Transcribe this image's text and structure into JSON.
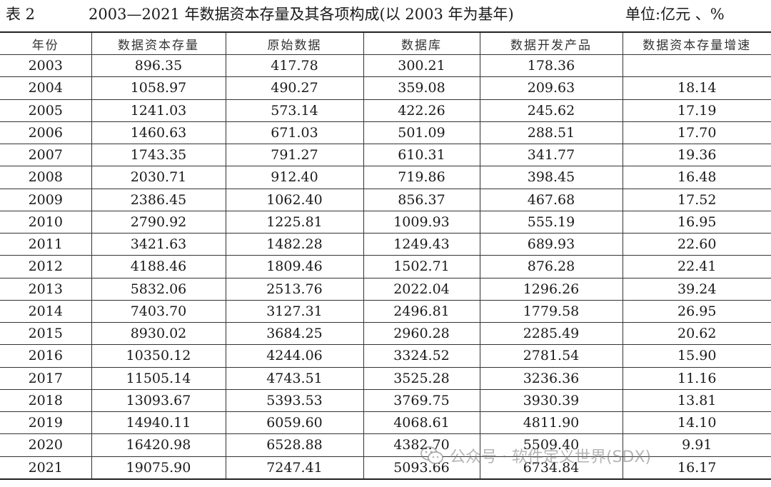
{
  "caption": {
    "label": "表 2",
    "title": "2003—2021 年数据资本存量及其各项构成(以 2003 年为基年)",
    "unit": "单位:亿元 、%"
  },
  "table": {
    "headers": [
      "年份",
      "数据资本存量",
      "原始数据",
      "数据库",
      "数据开发产品",
      "数据资本存量增速"
    ],
    "rows": [
      [
        "2003",
        "896.35",
        "417.78",
        "300.21",
        "178.36",
        ""
      ],
      [
        "2004",
        "1058.97",
        "490.27",
        "359.08",
        "209.63",
        "18.14"
      ],
      [
        "2005",
        "1241.03",
        "573.14",
        "422.26",
        "245.62",
        "17.19"
      ],
      [
        "2006",
        "1460.63",
        "671.03",
        "501.09",
        "288.51",
        "17.70"
      ],
      [
        "2007",
        "1743.35",
        "791.27",
        "610.31",
        "341.77",
        "19.36"
      ],
      [
        "2008",
        "2030.71",
        "912.40",
        "719.86",
        "398.45",
        "16.48"
      ],
      [
        "2009",
        "2386.45",
        "1062.40",
        "856.37",
        "467.68",
        "17.52"
      ],
      [
        "2010",
        "2790.92",
        "1225.81",
        "1009.93",
        "555.19",
        "16.95"
      ],
      [
        "2011",
        "3421.63",
        "1482.28",
        "1249.43",
        "689.93",
        "22.60"
      ],
      [
        "2012",
        "4188.46",
        "1809.46",
        "1502.71",
        "876.28",
        "22.41"
      ],
      [
        "2013",
        "5832.06",
        "2513.76",
        "2022.04",
        "1296.26",
        "39.24"
      ],
      [
        "2014",
        "7403.70",
        "3127.31",
        "2496.81",
        "1779.58",
        "26.95"
      ],
      [
        "2015",
        "8930.02",
        "3684.25",
        "2960.28",
        "2285.49",
        "20.62"
      ],
      [
        "2016",
        "10350.12",
        "4244.06",
        "3324.52",
        "2781.54",
        "15.90"
      ],
      [
        "2017",
        "11505.14",
        "4743.51",
        "3525.28",
        "3236.36",
        "11.16"
      ],
      [
        "2018",
        "13093.67",
        "5393.53",
        "3769.75",
        "3930.39",
        "13.81"
      ],
      [
        "2019",
        "14940.11",
        "6059.60",
        "4068.61",
        "4811.90",
        "14.10"
      ],
      [
        "2020",
        "16420.98",
        "6528.88",
        "4382.70",
        "5509.40",
        "9.91"
      ],
      [
        "2021",
        "19075.90",
        "7247.41",
        "5093.66",
        "6734.84",
        "16.17"
      ]
    ]
  },
  "watermark": {
    "icon": "wechat-icon",
    "text": "公众号 · 软件定义世界(SDX)"
  }
}
